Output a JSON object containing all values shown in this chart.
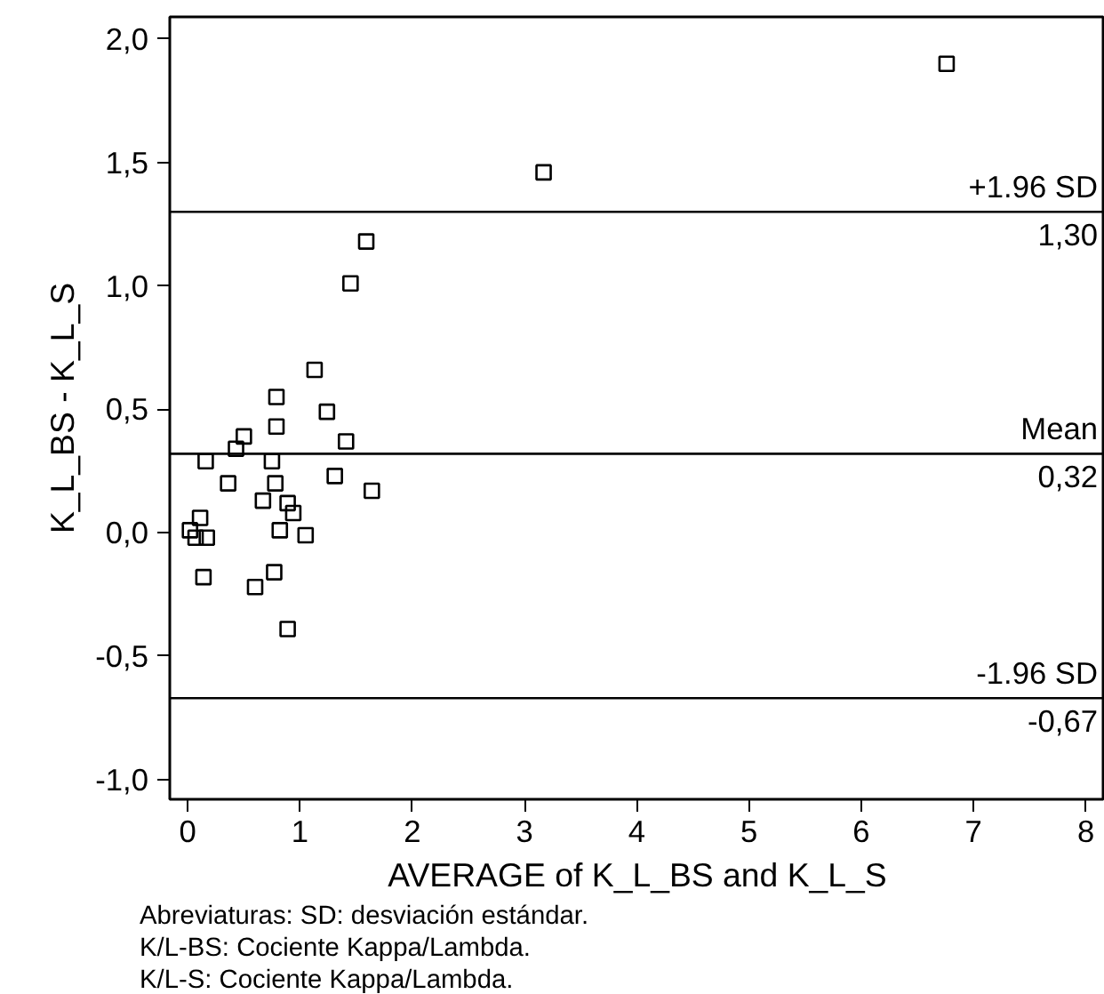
{
  "chart_data": {
    "type": "scatter",
    "xlabel": "AVERAGE of K_L_BS and K_L_S",
    "ylabel": "K_L_BS - K_L_S",
    "x": [
      6.76,
      3.17,
      1.59,
      1.45,
      1.13,
      1.24,
      0.79,
      0.79,
      1.41,
      0.5,
      0.43,
      0.16,
      0.75,
      0.36,
      0.78,
      1.31,
      1.64,
      0.67,
      0.89,
      0.94,
      0.11,
      0.02,
      0.07,
      0.17,
      0.82,
      1.05,
      0.14,
      0.6,
      0.77,
      0.89
    ],
    "values": [
      1.9,
      1.46,
      1.18,
      1.01,
      0.66,
      0.49,
      0.55,
      0.43,
      0.37,
      0.39,
      0.34,
      0.29,
      0.29,
      0.2,
      0.2,
      0.23,
      0.17,
      0.13,
      0.12,
      0.08,
      0.06,
      0.01,
      -0.02,
      -0.02,
      0.01,
      -0.01,
      -0.18,
      -0.22,
      -0.16,
      -0.39
    ],
    "color": "#000000",
    "marker": "square",
    "xlim": [
      -0.16,
      8.17
    ],
    "ylim": [
      -1.08,
      2.09
    ],
    "xticks": [
      0,
      1,
      2,
      3,
      4,
      5,
      6,
      7,
      8
    ],
    "yticks": [
      {
        "value": -1.0,
        "label": "-1,0"
      },
      {
        "value": -0.5,
        "label": "-0,5"
      },
      {
        "value": 0.0,
        "label": "0,0"
      },
      {
        "value": 0.5,
        "label": "0,5"
      },
      {
        "value": 1.0,
        "label": "1,0"
      },
      {
        "value": 1.5,
        "label": "1,5"
      },
      {
        "value": 2.0,
        "label": "2,0"
      }
    ],
    "grid": false,
    "ref_lines": [
      {
        "axis": "y",
        "value": 1.3,
        "label": "+1.96 SD"
      },
      {
        "axis": "y",
        "value": 0.32,
        "label": "Mean"
      },
      {
        "axis": "y",
        "value": -0.67,
        "label": "-1.96 SD"
      }
    ],
    "annotations": [
      {
        "text": "1,30",
        "y": 1.3
      },
      {
        "text": "0,32",
        "y": 0.32
      },
      {
        "text": "-0,67",
        "y": -0.67
      },
      "Abreviaturas: SD: desviación estándar.",
      "K/L-BS: Cociente Kappa/Lambda.",
      "K/L-S: Cociente Kappa/Lambda."
    ]
  }
}
